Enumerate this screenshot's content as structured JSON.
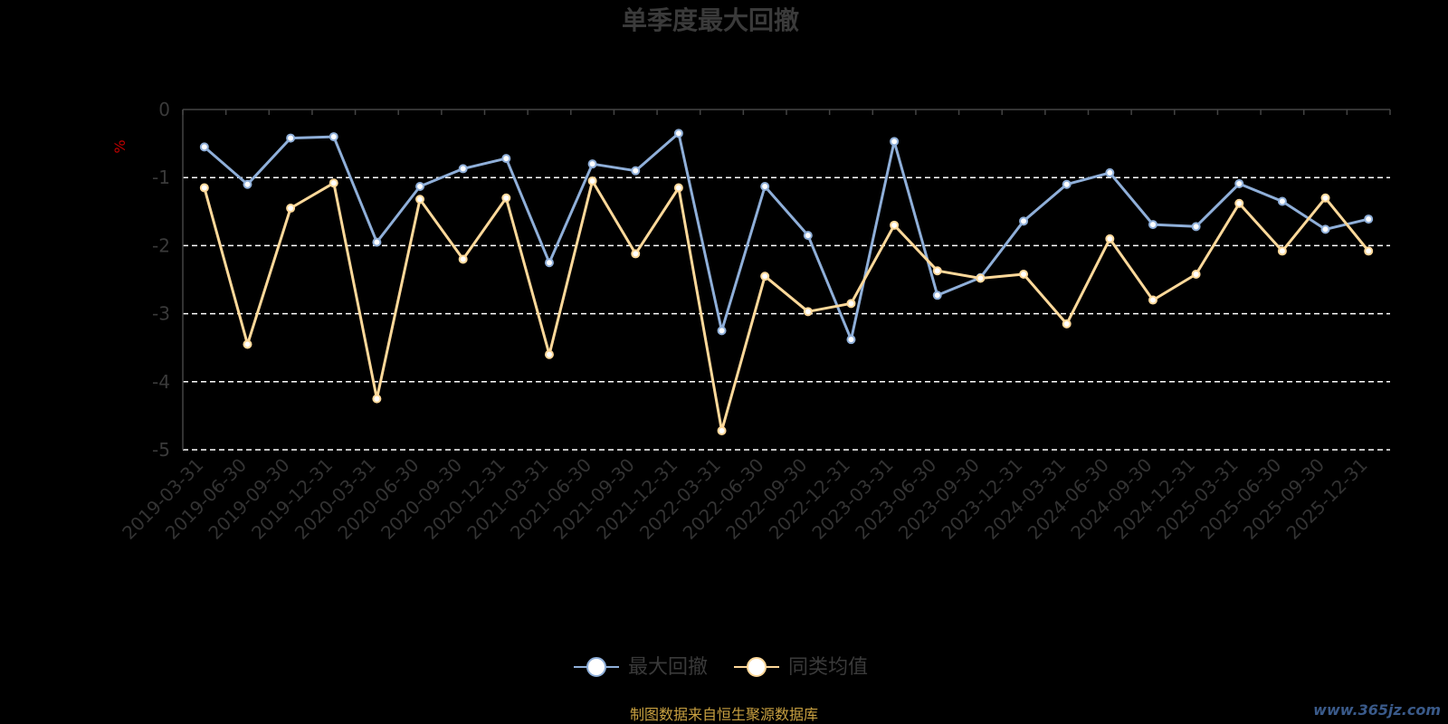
{
  "chart_data": {
    "type": "line",
    "title": "单季度最大回撤",
    "ylabel": "%",
    "ylim": [
      -5,
      0
    ],
    "yticks": [
      "0",
      "-1",
      "-2",
      "-3",
      "-4",
      "-5"
    ],
    "grid": true,
    "categories": [
      "2019-03-31",
      "2019-06-30",
      "2019-09-30",
      "2019-12-31",
      "2020-03-31",
      "2020-06-30",
      "2020-09-30",
      "2020-12-31",
      "2021-03-31",
      "2021-06-30",
      "2021-09-30",
      "2021-12-31",
      "2022-03-31",
      "2022-06-30",
      "2022-09-30",
      "2022-12-31",
      "2023-03-31",
      "2023-06-30",
      "2023-09-30",
      "2023-12-31",
      "2024-03-31",
      "2024-06-30",
      "2024-09-30",
      "2024-12-31",
      "2025-03-31",
      "2025-06-30",
      "2025-09-30",
      "2025-12-31"
    ],
    "series": [
      {
        "name": "最大回撤",
        "color": "#8fafd9",
        "values": [
          -0.55,
          -1.1,
          -0.42,
          -0.4,
          -1.95,
          -1.13,
          -0.87,
          -0.72,
          -2.25,
          -0.8,
          -0.9,
          -0.35,
          -3.25,
          -1.13,
          -1.85,
          -3.38,
          -0.47,
          -2.73,
          -2.47,
          -1.64,
          -1.1,
          -0.93,
          -1.69,
          -1.72,
          -1.09,
          -1.35,
          -1.76,
          -1.61
        ]
      },
      {
        "name": "同类均值",
        "color": "#ffd99a",
        "values": [
          -1.15,
          -3.45,
          -1.45,
          -1.08,
          -4.25,
          -1.32,
          -2.2,
          -1.3,
          -3.6,
          -1.05,
          -2.12,
          -1.15,
          -4.72,
          -2.45,
          -2.97,
          -2.85,
          -1.7,
          -2.37,
          -2.48,
          -2.42,
          -3.15,
          -1.9,
          -2.8,
          -2.42,
          -1.38,
          -2.08,
          -1.3,
          -2.08
        ]
      }
    ],
    "legend_position": "bottom-center"
  },
  "source_note": "制图数据来自恒生聚源数据库",
  "watermark": "www.365jz.com"
}
